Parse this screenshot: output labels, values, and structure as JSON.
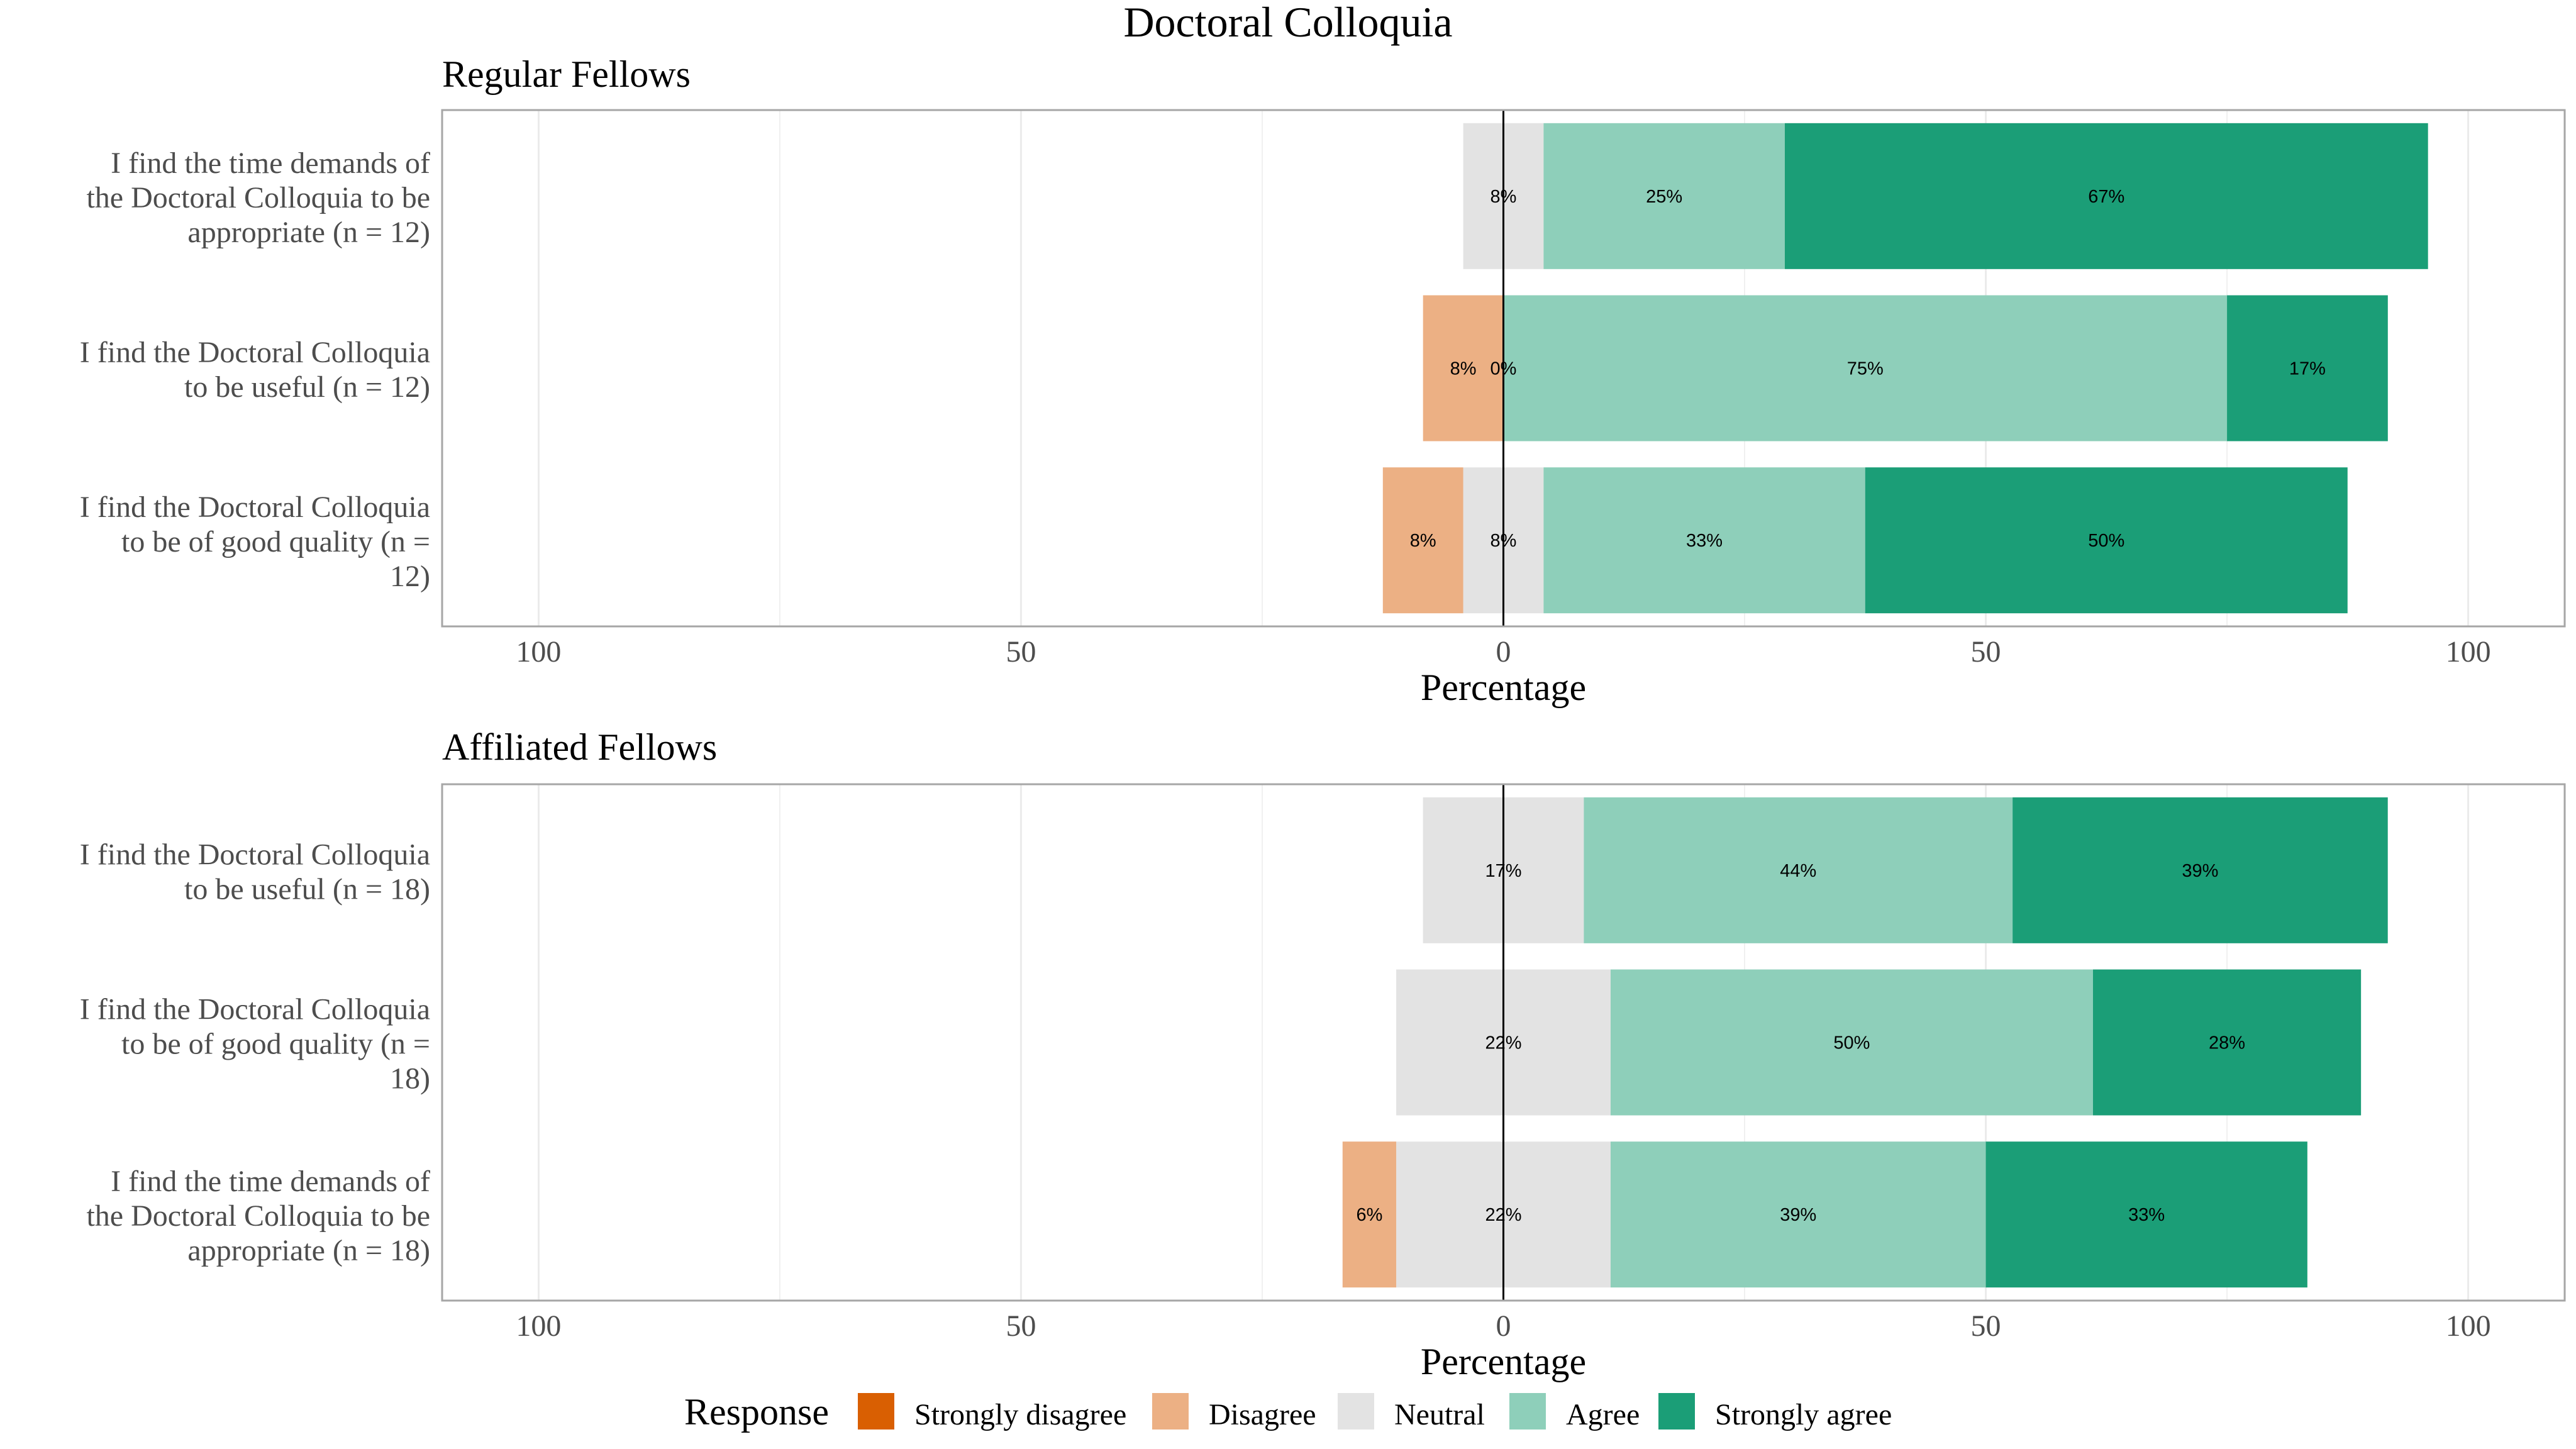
{
  "title": "Doctoral Colloquia",
  "axis_xlabel": "Percentage",
  "legend": {
    "title": "Response",
    "items": [
      {
        "label": "Strongly disagree",
        "color": "#d95f02"
      },
      {
        "label": "Disagree",
        "color": "#ecb084"
      },
      {
        "label": "Neutral",
        "color": "#e3e3e3"
      },
      {
        "label": "Agree",
        "color": "#8ecfba"
      },
      {
        "label": "Strongly agree",
        "color": "#1b9e77"
      }
    ]
  },
  "chart_data": [
    {
      "type": "bar",
      "subtype": "diverging-stacked-horizontal",
      "title": "Regular Fellows",
      "xlabel": "Percentage",
      "xlim": [
        -110,
        110
      ],
      "xticks": [
        -100,
        -50,
        0,
        50,
        100
      ],
      "xtick_labels": [
        "100",
        "50",
        "0",
        "50",
        "100"
      ],
      "grid": true,
      "categories": [
        [
          "I find the time demands of",
          "the Doctoral Colloquia to be",
          "appropriate (n = 12)"
        ],
        [
          "I find the Doctoral Colloquia",
          "to be useful (n = 12)"
        ],
        [
          "I find the Doctoral Colloquia",
          "to be of good quality (n =",
          "12)"
        ]
      ],
      "series": [
        {
          "name": "Strongly disagree",
          "values": [
            0,
            0,
            0
          ],
          "labels": [
            "",
            "",
            ""
          ]
        },
        {
          "name": "Disagree",
          "values": [
            0,
            8.33,
            8.33
          ],
          "labels": [
            "",
            "8%",
            "8%"
          ]
        },
        {
          "name": "Neutral",
          "values": [
            8.33,
            0,
            8.33
          ],
          "labels": [
            "8%",
            "0%",
            "8%"
          ]
        },
        {
          "name": "Agree",
          "values": [
            25,
            75,
            33.33
          ],
          "labels": [
            "25%",
            "75%",
            "33%"
          ]
        },
        {
          "name": "Strongly agree",
          "values": [
            66.67,
            16.67,
            50
          ],
          "labels": [
            "67%",
            "17%",
            "50%"
          ]
        }
      ]
    },
    {
      "type": "bar",
      "subtype": "diverging-stacked-horizontal",
      "title": "Affiliated Fellows",
      "xlabel": "Percentage",
      "xlim": [
        -110,
        110
      ],
      "xticks": [
        -100,
        -50,
        0,
        50,
        100
      ],
      "xtick_labels": [
        "100",
        "50",
        "0",
        "50",
        "100"
      ],
      "grid": true,
      "categories": [
        [
          "I find the Doctoral Colloquia",
          "to be useful (n = 18)"
        ],
        [
          "I find the Doctoral Colloquia",
          "to be of good quality (n =",
          "18)"
        ],
        [
          "I find the time demands of",
          "the Doctoral Colloquia to be",
          "appropriate (n = 18)"
        ]
      ],
      "series": [
        {
          "name": "Strongly disagree",
          "values": [
            0,
            0,
            0
          ],
          "labels": [
            "",
            "",
            ""
          ]
        },
        {
          "name": "Disagree",
          "values": [
            0,
            0,
            5.56
          ],
          "labels": [
            "",
            "",
            "6%"
          ]
        },
        {
          "name": "Neutral",
          "values": [
            16.67,
            22.22,
            22.22
          ],
          "labels": [
            "17%",
            "22%",
            "22%"
          ]
        },
        {
          "name": "Agree",
          "values": [
            44.44,
            50,
            38.89
          ],
          "labels": [
            "44%",
            "50%",
            "39%"
          ]
        },
        {
          "name": "Strongly agree",
          "values": [
            38.89,
            27.78,
            33.33
          ],
          "labels": [
            "39%",
            "28%",
            "33%"
          ]
        }
      ]
    }
  ]
}
